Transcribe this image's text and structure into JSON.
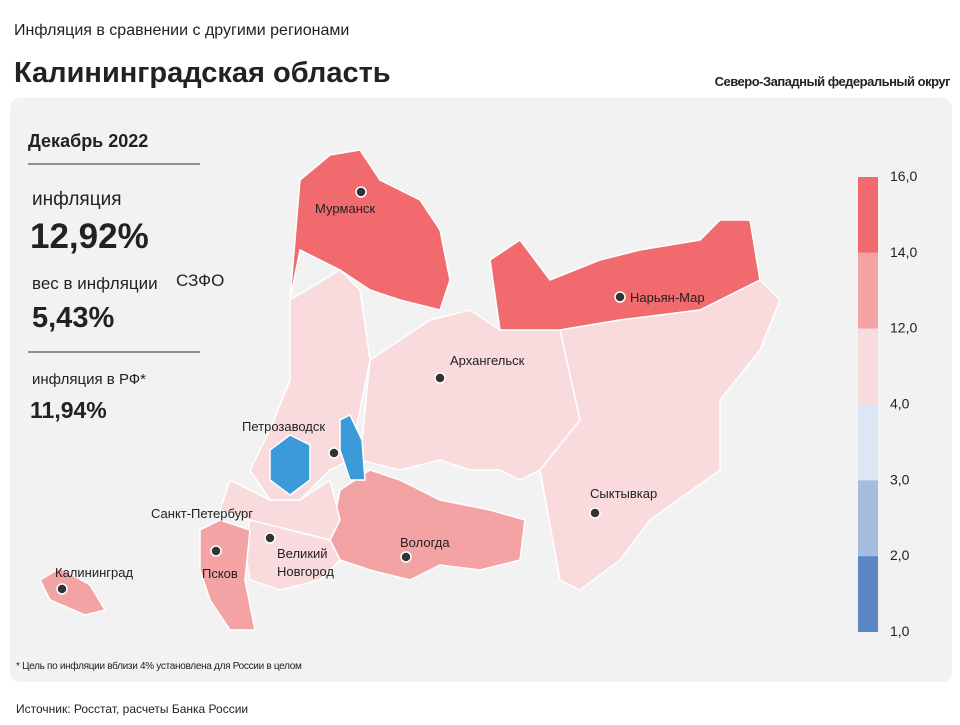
{
  "header": {
    "subtitle": "Инфляция в сравнении с другими регионами",
    "title": "Калининградская область",
    "district": "Северо-Западный федеральный округ"
  },
  "panel": {
    "period": "Декабрь 2022",
    "inflation_label": "инфляция",
    "inflation_value": "12,92%",
    "weight_label": "вес в инфляции",
    "weight_region": "СЗФО",
    "weight_value": "5,43%",
    "rf_label": "инфляция  в РФ*",
    "rf_value": "11,94%"
  },
  "map": {
    "cities": [
      "Мурманск",
      "Нарьян-Мар",
      "Архангельск",
      "Петрозаводск",
      "Сыктывкар",
      "Санкт-Петербург",
      "Вологда",
      "Великий",
      "Новгород",
      "Псков",
      "Калининград"
    ]
  },
  "legend": {
    "labels": [
      "16,0",
      "14,0",
      "12,0",
      "4,0",
      "3,0",
      "2,0",
      "1,0"
    ],
    "colors": [
      "#f06a6e",
      "#f4a3a5",
      "#f9dadd",
      "#dde6f4",
      "#a6bddf",
      "#5b88c4"
    ]
  },
  "footnote": "* Цель по инфляции вблизи 4% установлена для России в целом",
  "source": "Источник: Росстат, расчеты Банка России"
}
